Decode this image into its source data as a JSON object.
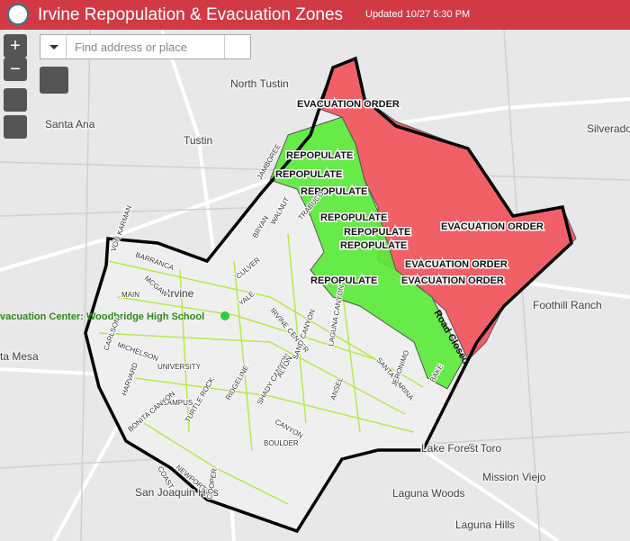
{
  "header": {
    "title": "Irvine Repopulation & Evacuation Zones",
    "updated": "Updated 10/27 5:30 PM"
  },
  "controls": {
    "zoom_in": "+",
    "zoom_out": "−",
    "search_placeholder": "Find address or place"
  },
  "zone_labels": [
    "EVACUATION ORDER",
    "REPOPULATE",
    "REPOPULATE",
    "REPOPULATE",
    "REPOPULATE",
    "REPOPULATE",
    "REPOPULATE",
    "EVACUATION ORDER",
    "EVACUATION ORDER",
    "EVACUATION ORDER",
    "REPOPULATE"
  ],
  "place_labels": [
    "North Tustin",
    "Santa Ana",
    "Tustin",
    "Silverado",
    "Irvine",
    "Foothill Ranch",
    "ta Mesa",
    "El Toro",
    "Lake Forest",
    "Mission Viejo",
    "Laguna Woods",
    "San Joaquin Hills",
    "Laguna Hills"
  ],
  "facility_label": "vacuation Center: Woodbridge High School",
  "closure_label": "Road Closed",
  "street_labels": [
    "JAMBOREE",
    "BARRANCA",
    "VON KARMAN",
    "MAIN",
    "MCGAW",
    "HARVARD",
    "CULVER",
    "YALE",
    "WALNUT",
    "BRYAN",
    "TRABUCO",
    "IRVINE CENTER",
    "MICHELSON",
    "UNIVERSITY",
    "CAMPUS",
    "CARLSON",
    "RIDGELINE",
    "SHADY CANYON",
    "ALTON",
    "SAND CANYON",
    "LAGUNA CANYON",
    "ANSEL",
    "SANTA MARINA",
    "JERONIMO",
    "BAKE",
    "TURTLE ROCK",
    "COOPER",
    "BOULDER",
    "CANYON",
    "BONITA CANYON",
    "NEWPORT",
    "COAST"
  ]
}
